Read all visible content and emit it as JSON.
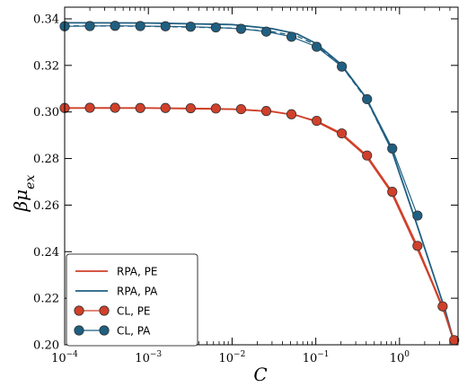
{
  "chart_data": {
    "type": "line",
    "title": "",
    "xlabel": "C",
    "ylabel": "βμ_ex",
    "xscale": "log",
    "xlim": [
      0.0001,
      5
    ],
    "ylim": [
      0.2,
      0.345
    ],
    "grid": false,
    "legend_position": "bottom-left",
    "x_ticks": [
      {
        "value": 0.0001,
        "base": "10",
        "exp": "−4"
      },
      {
        "value": 0.001,
        "base": "10",
        "exp": "−3"
      },
      {
        "value": 0.01,
        "base": "10",
        "exp": "−2"
      },
      {
        "value": 0.1,
        "base": "10",
        "exp": "−1"
      },
      {
        "value": 1,
        "base": "10",
        "exp": "0"
      }
    ],
    "y_ticks": [
      {
        "value": 0.2,
        "label": "0.20"
      },
      {
        "value": 0.22,
        "label": "0.22"
      },
      {
        "value": 0.24,
        "label": "0.24"
      },
      {
        "value": 0.26,
        "label": "0.26"
      },
      {
        "value": 0.28,
        "label": "0.28"
      },
      {
        "value": 0.3,
        "label": "0.30"
      },
      {
        "value": 0.32,
        "label": "0.32"
      },
      {
        "value": 0.34,
        "label": "0.34"
      }
    ],
    "series": [
      {
        "name": "RPA, PE",
        "kind": "line",
        "color": "#d0402a",
        "x": [
          0.0001,
          0.001,
          0.01,
          0.03,
          0.06,
          0.1,
          0.2,
          0.4,
          0.8,
          1.6,
          2.5,
          3.5,
          4.5
        ],
        "y": [
          0.3017,
          0.3017,
          0.3012,
          0.3002,
          0.2985,
          0.296,
          0.2905,
          0.281,
          0.2655,
          0.242,
          0.226,
          0.213,
          0.201
        ]
      },
      {
        "name": "RPA, PA",
        "kind": "line",
        "color": "#1f5f82",
        "x": [
          0.0001,
          0.001,
          0.01,
          0.03,
          0.06,
          0.1,
          0.2,
          0.4,
          0.8,
          1.6,
          2.5,
          3.5,
          4.5
        ],
        "y": [
          0.3383,
          0.3382,
          0.3375,
          0.3358,
          0.3335,
          0.3295,
          0.3205,
          0.306,
          0.284,
          0.252,
          0.231,
          0.215,
          0.201
        ]
      },
      {
        "name": "",
        "kind": "dashed",
        "color": "#1f5f82",
        "x": [
          0.0001,
          0.001,
          0.01,
          0.03,
          0.06,
          0.1,
          0.2,
          0.4,
          0.8,
          1.6,
          2.5,
          3.5,
          4.5
        ],
        "y": [
          0.337,
          0.3368,
          0.336,
          0.3345,
          0.3325,
          0.3288,
          0.32,
          0.3055,
          0.2838,
          0.252,
          0.231,
          0.215,
          0.201
        ]
      },
      {
        "name": "CL, PE",
        "kind": "points",
        "color": "#d0402a",
        "x": [
          0.0001,
          0.0002,
          0.0004,
          0.0008,
          0.0016,
          0.0032,
          0.0064,
          0.0128,
          0.0256,
          0.0512,
          0.1024,
          0.2048,
          0.4096,
          0.8192,
          1.6384,
          3.2768,
          4.5
        ],
        "y": [
          0.3017,
          0.3018,
          0.3018,
          0.3017,
          0.3017,
          0.3016,
          0.3015,
          0.3012,
          0.3004,
          0.299,
          0.2962,
          0.2908,
          0.2813,
          0.2657,
          0.2425,
          0.2165,
          0.202
        ]
      },
      {
        "name": "CL, PA",
        "kind": "points",
        "color": "#1f5f82",
        "x": [
          0.0001,
          0.0002,
          0.0004,
          0.0008,
          0.0016,
          0.0032,
          0.0064,
          0.0128,
          0.0256,
          0.0512,
          0.1024,
          0.2048,
          0.4096,
          0.8192,
          1.6384
        ],
        "y": [
          0.3368,
          0.3369,
          0.337,
          0.3369,
          0.3368,
          0.3366,
          0.3363,
          0.3357,
          0.3345,
          0.3323,
          0.328,
          0.3195,
          0.3055,
          0.2843,
          0.2555
        ]
      }
    ]
  }
}
